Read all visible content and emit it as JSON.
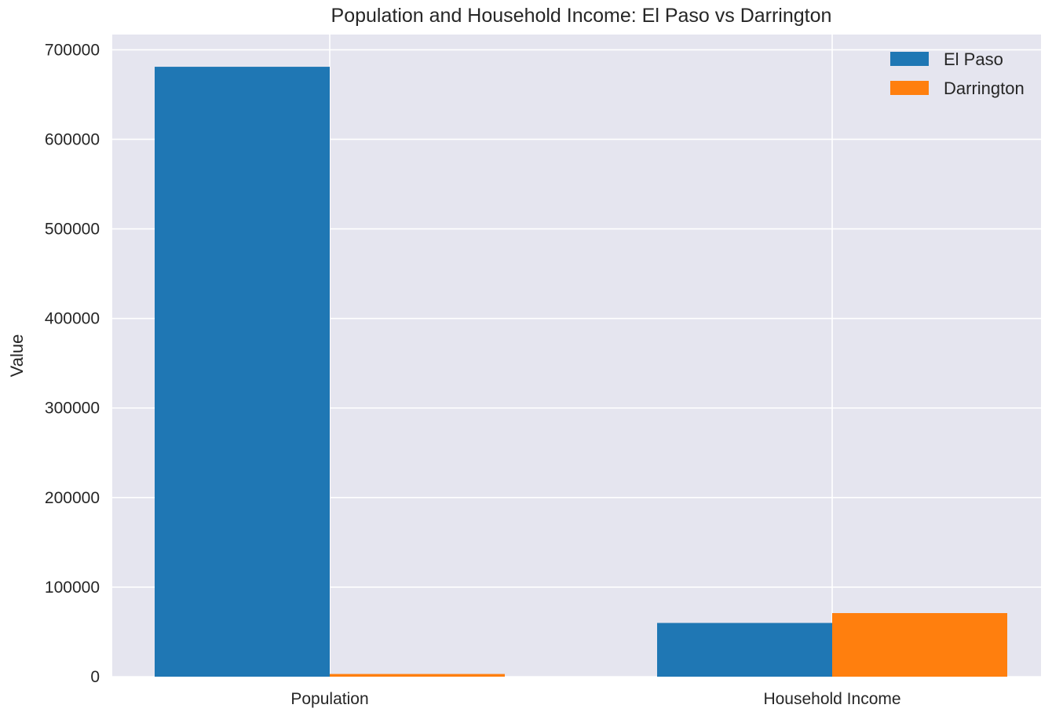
{
  "chart_data": {
    "type": "bar",
    "title": "Population and Household Income: El Paso vs Darrington",
    "xlabel": "",
    "ylabel": "Value",
    "categories": [
      "Population",
      "Household Income"
    ],
    "series": [
      {
        "name": "El Paso",
        "values": [
          681000,
          60000
        ],
        "color": "#1f77b4"
      },
      {
        "name": "Darrington",
        "values": [
          3000,
          71000
        ],
        "color": "#ff7f0e"
      }
    ],
    "ylim": [
      0,
      717000
    ],
    "yticks": [
      0,
      100000,
      200000,
      300000,
      400000,
      500000,
      600000,
      700000
    ],
    "ytick_labels": [
      "0",
      "100000",
      "200000",
      "300000",
      "400000",
      "500000",
      "600000",
      "700000"
    ],
    "grid": true,
    "legend_position": "top-right",
    "background_color": "#e5e5ef",
    "grid_color": "#ffffff"
  }
}
